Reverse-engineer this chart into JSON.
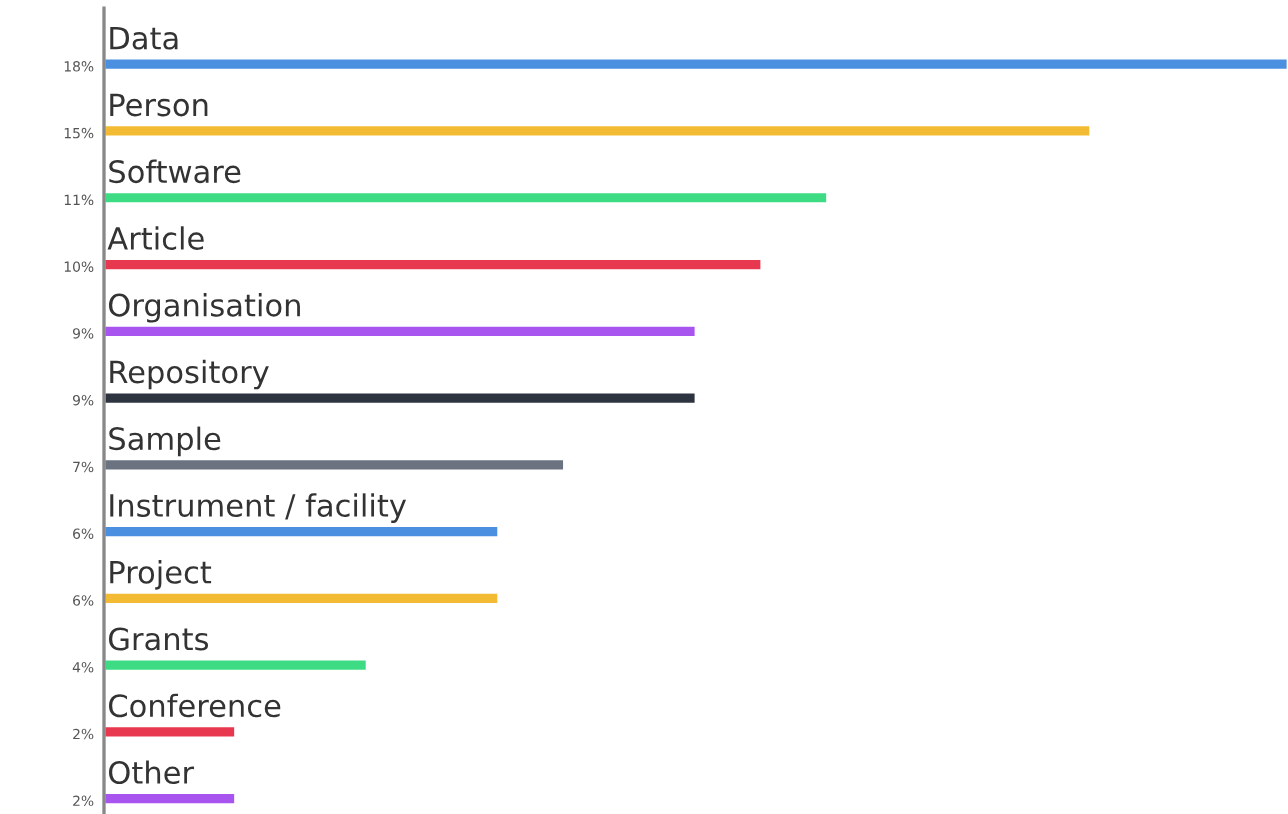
{
  "chart_data": {
    "type": "bar",
    "orientation": "horizontal",
    "categories": [
      "Data",
      "Person",
      "Software",
      "Article",
      "Organisation",
      "Repository",
      "Sample",
      "Instrument / facility",
      "Project",
      "Grants",
      "Conference",
      "Other"
    ],
    "values": [
      18,
      15,
      11,
      10,
      9,
      9,
      7,
      6,
      6,
      4,
      2,
      2
    ],
    "value_labels": [
      "18%",
      "15%",
      "11%",
      "10%",
      "9%",
      "9%",
      "7%",
      "6%",
      "6%",
      "4%",
      "2%",
      "2%"
    ],
    "colors": [
      "#4a8fe0",
      "#f3bb33",
      "#3ddc84",
      "#e8384f",
      "#a855f0",
      "#2d333f",
      "#6b7380",
      "#4a8fe0",
      "#f3bb33",
      "#3ddc84",
      "#e8384f",
      "#a855f0"
    ],
    "xlim": [
      0,
      18
    ]
  }
}
